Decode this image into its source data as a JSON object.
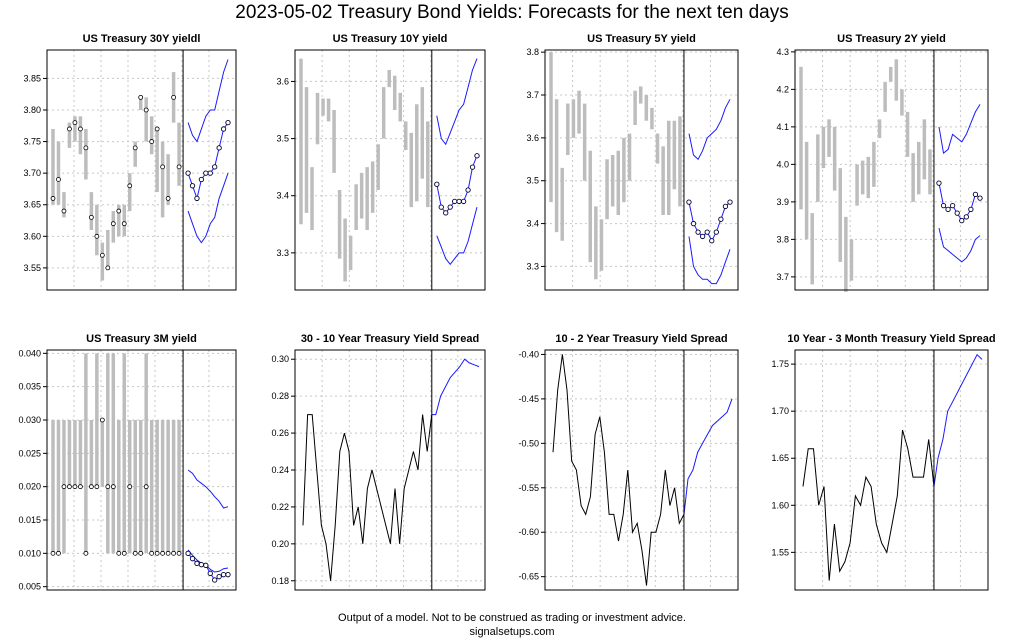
{
  "title": "2023-05-02 Treasury Bond Yields: Forecasts for the next ten days",
  "footer": {
    "line1": "Output of a model. Not to be construed as trading or investment advice.",
    "line2": "signalsetups.com"
  },
  "colors": {
    "history": "#bdbdbd",
    "close": "#000000",
    "forecast": "#1a1aff",
    "grid": "#c8c8c8",
    "frame": "#000000"
  },
  "chart_data": [
    {
      "type": "range-forecast",
      "title": "US Treasury 30Y yieldl",
      "ylim": [
        3.515,
        3.895
      ],
      "yticks": [
        3.55,
        3.6,
        3.65,
        3.7,
        3.75,
        3.8,
        3.85
      ],
      "ytick_labels": [
        "3.55",
        "3.60",
        "3.65",
        "3.70",
        "3.75",
        "3.80",
        "3.85"
      ],
      "history": {
        "low": [
          3.65,
          3.65,
          3.63,
          3.74,
          3.75,
          3.73,
          3.69,
          3.61,
          3.57,
          3.53,
          3.55,
          3.59,
          3.6,
          3.6,
          3.64,
          3.71,
          3.8,
          3.75,
          3.73,
          3.67,
          3.63,
          3.65,
          3.78,
          3.68
        ],
        "high": [
          3.77,
          3.75,
          3.67,
          3.78,
          3.79,
          3.79,
          3.77,
          3.67,
          3.65,
          3.59,
          3.61,
          3.64,
          3.65,
          3.65,
          3.7,
          3.75,
          3.82,
          3.82,
          3.79,
          3.77,
          3.75,
          3.73,
          3.86,
          3.78
        ],
        "close": [
          3.66,
          3.69,
          3.64,
          3.77,
          3.78,
          3.77,
          3.74,
          3.63,
          3.6,
          3.57,
          3.55,
          3.62,
          3.64,
          3.62,
          3.68,
          3.74,
          3.82,
          3.8,
          3.75,
          3.77,
          3.71,
          3.66,
          3.82,
          3.71
        ]
      },
      "forecast": {
        "mid": [
          3.7,
          3.68,
          3.66,
          3.69,
          3.7,
          3.7,
          3.71,
          3.74,
          3.77,
          3.78
        ],
        "upper": [
          3.78,
          3.76,
          3.75,
          3.77,
          3.79,
          3.8,
          3.8,
          3.83,
          3.86,
          3.88
        ],
        "lower": [
          3.64,
          3.62,
          3.6,
          3.59,
          3.6,
          3.62,
          3.63,
          3.66,
          3.68,
          3.7
        ]
      }
    },
    {
      "type": "range-forecast",
      "title": "US Treasury 10Y yield",
      "ylim": [
        3.235,
        3.655
      ],
      "yticks": [
        3.3,
        3.4,
        3.5,
        3.6
      ],
      "ytick_labels": [
        "3.3",
        "3.4",
        "3.5",
        "3.6"
      ],
      "history": {
        "low": [
          3.35,
          3.37,
          3.34,
          3.49,
          3.54,
          3.53,
          3.44,
          3.29,
          3.25,
          3.27,
          3.34,
          3.36,
          3.34,
          3.37,
          3.41,
          3.5,
          3.59,
          3.55,
          3.53,
          3.48,
          3.38,
          3.39,
          3.43,
          3.38
        ],
        "high": [
          3.64,
          3.59,
          3.45,
          3.58,
          3.57,
          3.57,
          3.55,
          3.41,
          3.36,
          3.33,
          3.42,
          3.44,
          3.45,
          3.46,
          3.49,
          3.59,
          3.62,
          3.61,
          3.58,
          3.53,
          3.51,
          3.56,
          3.59,
          3.53
        ]
      },
      "forecast": {
        "mid": [
          3.42,
          3.38,
          3.37,
          3.38,
          3.39,
          3.39,
          3.39,
          3.41,
          3.45,
          3.47
        ],
        "upper": [
          3.54,
          3.5,
          3.49,
          3.51,
          3.53,
          3.55,
          3.56,
          3.59,
          3.62,
          3.64
        ],
        "lower": [
          3.33,
          3.31,
          3.29,
          3.28,
          3.29,
          3.3,
          3.3,
          3.32,
          3.35,
          3.38
        ]
      }
    },
    {
      "type": "range-forecast",
      "title": "US Treasury 5Y yield",
      "ylim": [
        3.245,
        3.805
      ],
      "yticks": [
        3.3,
        3.4,
        3.5,
        3.6,
        3.7,
        3.8
      ],
      "ytick_labels": [
        "3.3",
        "3.4",
        "3.5",
        "3.6",
        "3.7",
        "3.8"
      ],
      "history": {
        "low": [
          3.45,
          3.38,
          3.36,
          3.56,
          3.6,
          3.61,
          3.5,
          3.31,
          3.27,
          3.29,
          3.41,
          3.44,
          3.42,
          3.45,
          3.5,
          3.63,
          3.68,
          3.64,
          3.62,
          3.54,
          3.42,
          3.42,
          3.48,
          3.44
        ],
        "high": [
          3.8,
          3.69,
          3.53,
          3.68,
          3.69,
          3.71,
          3.68,
          3.57,
          3.44,
          3.41,
          3.55,
          3.56,
          3.57,
          3.6,
          3.61,
          3.71,
          3.72,
          3.7,
          3.67,
          3.61,
          3.58,
          3.64,
          3.64,
          3.65
        ]
      },
      "forecast": {
        "mid": [
          3.45,
          3.4,
          3.38,
          3.37,
          3.38,
          3.36,
          3.38,
          3.41,
          3.44,
          3.45
        ],
        "upper": [
          3.61,
          3.56,
          3.55,
          3.57,
          3.6,
          3.61,
          3.62,
          3.64,
          3.67,
          3.69
        ],
        "lower": [
          3.37,
          3.3,
          3.28,
          3.27,
          3.27,
          3.26,
          3.26,
          3.28,
          3.31,
          3.34
        ]
      }
    },
    {
      "type": "range-forecast",
      "title": "US Treasury 2Y yield",
      "ylim": [
        3.665,
        4.305
      ],
      "yticks": [
        3.7,
        3.8,
        3.9,
        4.0,
        4.1,
        4.2,
        4.3
      ],
      "ytick_labels": [
        "3.7",
        "3.8",
        "3.9",
        "4.0",
        "4.1",
        "4.2",
        "4.3"
      ],
      "history": {
        "low": [
          3.88,
          3.8,
          3.68,
          3.9,
          3.99,
          4.02,
          3.93,
          3.74,
          3.66,
          3.69,
          3.89,
          3.92,
          3.91,
          3.94,
          4.07,
          4.14,
          4.22,
          4.17,
          4.13,
          4.02,
          3.9,
          3.92,
          3.96,
          3.92
        ],
        "high": [
          4.26,
          4.06,
          3.87,
          4.08,
          4.1,
          4.12,
          4.1,
          3.99,
          3.86,
          3.8,
          4.0,
          4.01,
          4.02,
          4.06,
          4.12,
          4.22,
          4.26,
          4.28,
          4.2,
          4.14,
          4.03,
          4.06,
          4.12,
          4.04
        ]
      },
      "forecast": {
        "mid": [
          3.95,
          3.89,
          3.88,
          3.89,
          3.87,
          3.85,
          3.86,
          3.88,
          3.92,
          3.91
        ],
        "upper": [
          4.1,
          4.03,
          4.04,
          4.08,
          4.07,
          4.06,
          4.08,
          4.11,
          4.14,
          4.16
        ],
        "lower": [
          3.83,
          3.78,
          3.77,
          3.76,
          3.75,
          3.74,
          3.75,
          3.77,
          3.8,
          3.81
        ]
      }
    },
    {
      "type": "range-forecast",
      "title": "US Treasury 3M yield",
      "ylim": [
        0.0045,
        0.0405
      ],
      "yticks": [
        0.005,
        0.01,
        0.015,
        0.02,
        0.025,
        0.03,
        0.035,
        0.04
      ],
      "ytick_labels": [
        "0.005",
        "0.010",
        "0.015",
        "0.020",
        "0.025",
        "0.030",
        "0.035",
        "0.040"
      ],
      "history": {
        "low": [
          0.01,
          0.01,
          0.01,
          0.02,
          0.02,
          0.02,
          0.01,
          0.02,
          0.02,
          0.02,
          0.01,
          0.01,
          0.01,
          0.01,
          0.01,
          0.01,
          0.01,
          0.01,
          0.01,
          0.01,
          0.01,
          0.01,
          0.01,
          0.01
        ],
        "high": [
          0.03,
          0.03,
          0.03,
          0.03,
          0.03,
          0.03,
          0.04,
          0.03,
          0.04,
          0.03,
          0.04,
          0.04,
          0.03,
          0.04,
          0.03,
          0.03,
          0.03,
          0.04,
          0.03,
          0.03,
          0.03,
          0.03,
          0.03,
          0.03
        ],
        "close": [
          0.01,
          0.01,
          0.02,
          0.02,
          0.02,
          0.02,
          0.01,
          0.02,
          0.02,
          0.03,
          0.02,
          0.02,
          0.01,
          0.01,
          0.02,
          0.01,
          0.01,
          0.02,
          0.01,
          0.01,
          0.01,
          0.01,
          0.01,
          0.01
        ]
      },
      "forecast": {
        "mid": [
          0.01,
          0.0092,
          0.0085,
          0.0083,
          0.0082,
          0.007,
          0.006,
          0.0065,
          0.0068,
          0.0068
        ],
        "upper": [
          0.0225,
          0.022,
          0.021,
          0.0205,
          0.02,
          0.0193,
          0.0185,
          0.0178,
          0.0168,
          0.017
        ],
        "lower": [
          0.0105,
          0.0097,
          0.009,
          0.0085,
          0.0082,
          0.0076,
          0.0072,
          0.0073,
          0.0077,
          0.0078
        ]
      }
    },
    {
      "type": "line",
      "title": "30 - 10 Year Treasury Yield Spread",
      "ylim": [
        0.175,
        0.305
      ],
      "yticks": [
        0.18,
        0.2,
        0.22,
        0.24,
        0.26,
        0.28,
        0.3
      ],
      "ytick_labels": [
        "0.18",
        "0.20",
        "0.22",
        "0.24",
        "0.26",
        "0.28",
        "0.30"
      ],
      "history": [
        0.21,
        0.27,
        0.27,
        0.24,
        0.21,
        0.2,
        0.18,
        0.21,
        0.25,
        0.26,
        0.25,
        0.21,
        0.22,
        0.2,
        0.23,
        0.24,
        0.23,
        0.22,
        0.21,
        0.2,
        0.23,
        0.2,
        0.23,
        0.24,
        0.25,
        0.24,
        0.27,
        0.25,
        0.27
      ],
      "forecast": [
        0.27,
        0.28,
        0.285,
        0.29,
        0.293,
        0.296,
        0.3,
        0.298,
        0.297,
        0.296
      ]
    },
    {
      "type": "line",
      "title": "10 - 2 Year Treasury Yield Spread",
      "ylim": [
        -0.665,
        -0.395
      ],
      "yticks": [
        -0.65,
        -0.6,
        -0.55,
        -0.5,
        -0.45,
        -0.4
      ],
      "ytick_labels": [
        "-0.65",
        "-0.60",
        "-0.55",
        "-0.50",
        "-0.45",
        "-0.40"
      ],
      "history": [
        -0.51,
        -0.44,
        -0.4,
        -0.44,
        -0.52,
        -0.53,
        -0.57,
        -0.58,
        -0.56,
        -0.49,
        -0.47,
        -0.51,
        -0.58,
        -0.58,
        -0.61,
        -0.58,
        -0.53,
        -0.6,
        -0.59,
        -0.62,
        -0.66,
        -0.6,
        -0.6,
        -0.58,
        -0.53,
        -0.57,
        -0.55,
        -0.59,
        -0.58
      ],
      "forecast": [
        -0.54,
        -0.53,
        -0.51,
        -0.5,
        -0.49,
        -0.48,
        -0.475,
        -0.47,
        -0.465,
        -0.45
      ]
    },
    {
      "type": "line",
      "title": "10 Year - 3 Month Treasury Yield Spread",
      "ylim": [
        1.51,
        1.765
      ],
      "yticks": [
        1.55,
        1.6,
        1.65,
        1.7,
        1.75
      ],
      "ytick_labels": [
        "1.55",
        "1.60",
        "1.65",
        "1.70",
        "1.75"
      ],
      "history": [
        1.62,
        1.66,
        1.66,
        1.6,
        1.62,
        1.52,
        1.58,
        1.53,
        1.54,
        1.56,
        1.61,
        1.6,
        1.63,
        1.62,
        1.58,
        1.56,
        1.55,
        1.58,
        1.61,
        1.68,
        1.66,
        1.63,
        1.63,
        1.63,
        1.67,
        1.62
      ],
      "forecast": [
        1.65,
        1.67,
        1.7,
        1.71,
        1.72,
        1.73,
        1.74,
        1.75,
        1.76,
        1.755
      ]
    }
  ]
}
